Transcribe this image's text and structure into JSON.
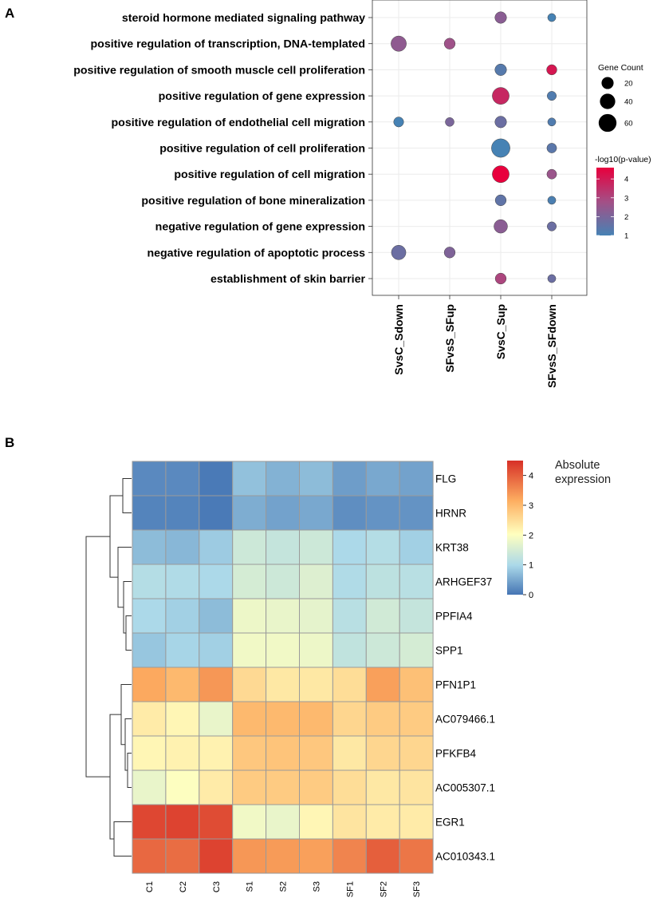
{
  "panels": {
    "a_label": "A",
    "b_label": "B"
  },
  "chart_data": [
    {
      "type": "scatter",
      "subtype": "bubble",
      "title": "",
      "xlabel": "",
      "ylabel": "",
      "grid": true,
      "categories": [
        "SvsC_Sdown",
        "SFvsS_SFup",
        "SvsC_Sup",
        "SFvsS_SFdown"
      ],
      "terms": [
        "steroid hormone mediated signaling pathway",
        "positive regulation of transcription, DNA-templated",
        "positive regulation of smooth muscle cell proliferation",
        "positive regulation of gene expression",
        "positive regulation of endothelial cell migration",
        "positive regulation of cell proliferation",
        "positive regulation of cell migration",
        "positive regulation of bone mineralization",
        "negative regulation of gene expression",
        "negative regulation of apoptotic process",
        "establishment of skin barrier"
      ],
      "points": [
        {
          "term": 0,
          "cat": 2,
          "count": 18,
          "logp": 2.3
        },
        {
          "term": 0,
          "cat": 3,
          "count": 5,
          "logp": 1.0
        },
        {
          "term": 1,
          "cat": 0,
          "count": 40,
          "logp": 2.4
        },
        {
          "term": 1,
          "cat": 1,
          "count": 15,
          "logp": 2.7
        },
        {
          "term": 2,
          "cat": 2,
          "count": 18,
          "logp": 1.3
        },
        {
          "term": 2,
          "cat": 3,
          "count": 12,
          "logp": 4.1
        },
        {
          "term": 3,
          "cat": 2,
          "count": 52,
          "logp": 3.7
        },
        {
          "term": 3,
          "cat": 3,
          "count": 8,
          "logp": 1.2
        },
        {
          "term": 4,
          "cat": 0,
          "count": 11,
          "logp": 1.0
        },
        {
          "term": 4,
          "cat": 1,
          "count": 7,
          "logp": 2.0
        },
        {
          "term": 4,
          "cat": 2,
          "count": 18,
          "logp": 1.7
        },
        {
          "term": 4,
          "cat": 3,
          "count": 5,
          "logp": 1.2
        },
        {
          "term": 5,
          "cat": 2,
          "count": 66,
          "logp": 1.0
        },
        {
          "term": 5,
          "cat": 3,
          "count": 10,
          "logp": 1.4
        },
        {
          "term": 6,
          "cat": 2,
          "count": 52,
          "logp": 4.6
        },
        {
          "term": 6,
          "cat": 3,
          "count": 10,
          "logp": 2.6
        },
        {
          "term": 7,
          "cat": 2,
          "count": 15,
          "logp": 1.5
        },
        {
          "term": 7,
          "cat": 3,
          "count": 5,
          "logp": 1.1
        },
        {
          "term": 8,
          "cat": 2,
          "count": 28,
          "logp": 2.3
        },
        {
          "term": 8,
          "cat": 3,
          "count": 8,
          "logp": 1.7
        },
        {
          "term": 9,
          "cat": 0,
          "count": 34,
          "logp": 1.7
        },
        {
          "term": 9,
          "cat": 1,
          "count": 15,
          "logp": 2.1
        },
        {
          "term": 10,
          "cat": 2,
          "count": 15,
          "logp": 3.0
        },
        {
          "term": 10,
          "cat": 3,
          "count": 5,
          "logp": 1.7
        }
      ],
      "size_legend": {
        "title": "Gene Count",
        "values": [
          20,
          40,
          60
        ],
        "labels": [
          "20",
          "40",
          "60"
        ]
      },
      "color_legend": {
        "title": "-log10(p-value)",
        "range": [
          1,
          4.6
        ],
        "ticks": [
          1,
          2,
          3,
          4
        ],
        "tick_labels": [
          "1",
          "2",
          "3",
          "4"
        ],
        "colors": [
          "#4682b4",
          "#e8003d"
        ]
      },
      "colors": {
        "panel_bg": "#ffffff",
        "grid": "#ebebeb",
        "border": "#333333",
        "point_edge": "#444444"
      }
    },
    {
      "type": "heatmap",
      "title": "",
      "rows": [
        "FLG",
        "HRNR",
        "KRT38",
        "ARHGEF37",
        "PPFIA4",
        "SPP1",
        "PFN1P1",
        "AC079466.1",
        "PFKFB4",
        "AC005307.1",
        "EGR1",
        "AC010343.1"
      ],
      "columns": [
        "C1",
        "C2",
        "C3",
        "S1",
        "S2",
        "S3",
        "SF1",
        "SF2",
        "SF3"
      ],
      "values": [
        [
          0.2,
          0.2,
          0.05,
          0.75,
          0.6,
          0.7,
          0.4,
          0.5,
          0.45
        ],
        [
          0.15,
          0.15,
          0.05,
          0.55,
          0.45,
          0.5,
          0.25,
          0.3,
          0.3
        ],
        [
          0.7,
          0.65,
          0.85,
          1.4,
          1.3,
          1.4,
          1.0,
          1.1,
          0.9
        ],
        [
          1.1,
          1.05,
          1.0,
          1.5,
          1.4,
          1.6,
          1.05,
          1.2,
          1.15
        ],
        [
          1.0,
          0.9,
          0.7,
          1.8,
          1.75,
          1.7,
          1.15,
          1.45,
          1.3
        ],
        [
          0.8,
          0.95,
          0.9,
          1.85,
          1.85,
          1.8,
          1.25,
          1.4,
          1.5
        ],
        [
          3.2,
          3.0,
          3.4,
          2.55,
          2.35,
          2.35,
          2.5,
          3.3,
          2.9
        ],
        [
          2.3,
          2.15,
          1.75,
          3.0,
          3.0,
          3.0,
          2.6,
          2.75,
          2.75
        ],
        [
          2.15,
          2.2,
          2.2,
          2.8,
          2.85,
          2.8,
          2.35,
          2.6,
          2.6
        ],
        [
          1.75,
          2.0,
          2.3,
          2.75,
          2.75,
          2.75,
          2.5,
          2.35,
          2.4
        ],
        [
          4.25,
          4.3,
          4.2,
          1.85,
          1.75,
          2.15,
          2.4,
          2.3,
          2.3
        ],
        [
          3.9,
          3.85,
          4.3,
          3.4,
          3.35,
          3.3,
          3.6,
          4.0,
          3.75
        ]
      ],
      "color_scale": {
        "title": [
          "Absolute",
          "expression"
        ],
        "range": [
          0,
          4.5
        ],
        "ticks": [
          0,
          1,
          2,
          3,
          4
        ],
        "tick_labels": [
          "0",
          "1",
          "2",
          "3",
          "4"
        ],
        "colors": [
          "#4575b4",
          "#ffffbf",
          "#d73027"
        ]
      },
      "row_dendrogram": true,
      "colors": {
        "cell_border": "#9a9a9a",
        "dendrogram": "#333333"
      }
    }
  ]
}
